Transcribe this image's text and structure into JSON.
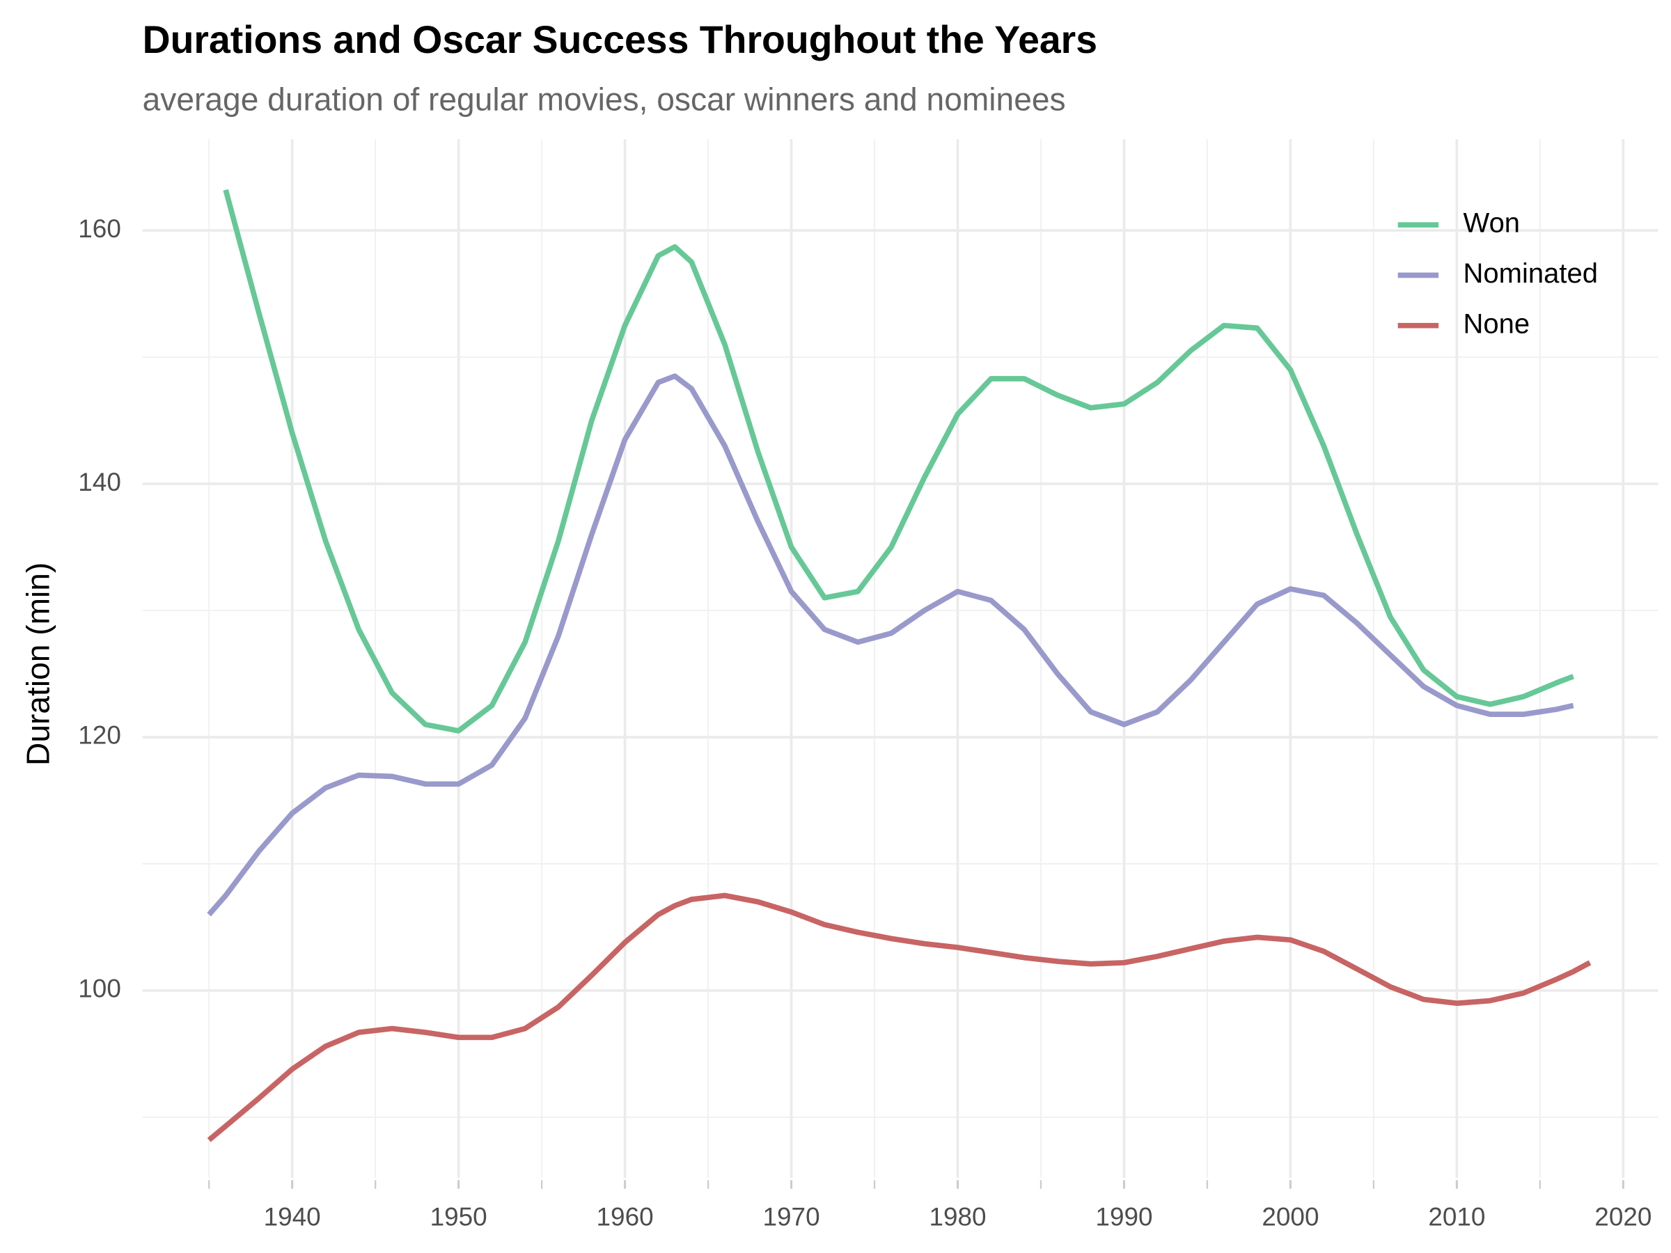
{
  "chart_data": {
    "type": "line",
    "title": "Durations and Oscar Success Throughout the Years",
    "subtitle": "average duration of regular movies, oscar winners and nominees",
    "y_label": "Duration (min)",
    "x": [
      1935,
      1936,
      1938,
      1940,
      1942,
      1944,
      1946,
      1948,
      1950,
      1952,
      1954,
      1956,
      1958,
      1960,
      1962,
      1963,
      1964,
      1966,
      1968,
      1970,
      1972,
      1974,
      1976,
      1978,
      1980,
      1982,
      1984,
      1986,
      1988,
      1990,
      1992,
      1994,
      1996,
      1998,
      2000,
      2002,
      2004,
      2006,
      2008,
      2010,
      2012,
      2014,
      2016,
      2017,
      2018
    ],
    "series": [
      {
        "name": "Won",
        "color": "#66c896",
        "values": [
          null,
          163.2,
          153.5,
          144,
          135.5,
          128.5,
          123.5,
          121,
          120.5,
          122.5,
          127.5,
          135.5,
          145,
          152.5,
          158,
          158.7,
          157.5,
          151,
          142.5,
          135,
          131,
          131.5,
          135,
          140.5,
          145.5,
          148.3,
          148.3,
          147,
          146,
          146.3,
          148,
          150.5,
          152.5,
          152.3,
          149,
          143,
          136,
          129.5,
          125.3,
          123.2,
          122.6,
          123.2,
          124.3,
          124.8,
          null
        ]
      },
      {
        "name": "Nominated",
        "color": "#9999cc",
        "values": [
          106,
          107.5,
          111,
          114,
          116,
          117,
          116.9,
          116.3,
          116.3,
          117.8,
          121.5,
          128,
          136,
          143.5,
          148,
          148.5,
          147.5,
          143,
          137,
          131.5,
          128.5,
          127.5,
          128.2,
          130,
          131.5,
          130.8,
          128.5,
          125,
          122,
          121,
          122,
          124.5,
          127.5,
          130.5,
          131.7,
          131.2,
          129,
          126.5,
          124,
          122.5,
          121.8,
          121.8,
          122.2,
          122.5,
          null
        ]
      },
      {
        "name": "None",
        "color": "#c86464",
        "values": [
          88.2,
          89.3,
          91.5,
          93.8,
          95.6,
          96.7,
          97,
          96.7,
          96.3,
          96.3,
          97,
          98.7,
          101.2,
          103.8,
          106,
          106.7,
          107.2,
          107.5,
          107,
          106.2,
          105.2,
          104.6,
          104.1,
          103.7,
          103.4,
          103,
          102.6,
          102.3,
          102.1,
          102.2,
          102.7,
          103.3,
          103.9,
          104.2,
          104,
          103.1,
          101.7,
          100.3,
          99.3,
          99,
          99.2,
          99.8,
          100.9,
          101.5,
          102.2
        ]
      }
    ],
    "xlim": [
      1931,
      2022.1
    ],
    "ylim": [
      85.2,
      167.2
    ],
    "xticks": [
      1940,
      1950,
      1960,
      1970,
      1980,
      1990,
      2000,
      2010,
      2020
    ],
    "yticks": [
      100,
      120,
      140,
      160
    ],
    "x_minor_ticks": [
      1935,
      1945,
      1955,
      1965,
      1975,
      1985,
      1995,
      2005,
      2015
    ],
    "y_minor_ticks": [
      90,
      110,
      130,
      150
    ],
    "grid": true,
    "legend": "top-right"
  }
}
